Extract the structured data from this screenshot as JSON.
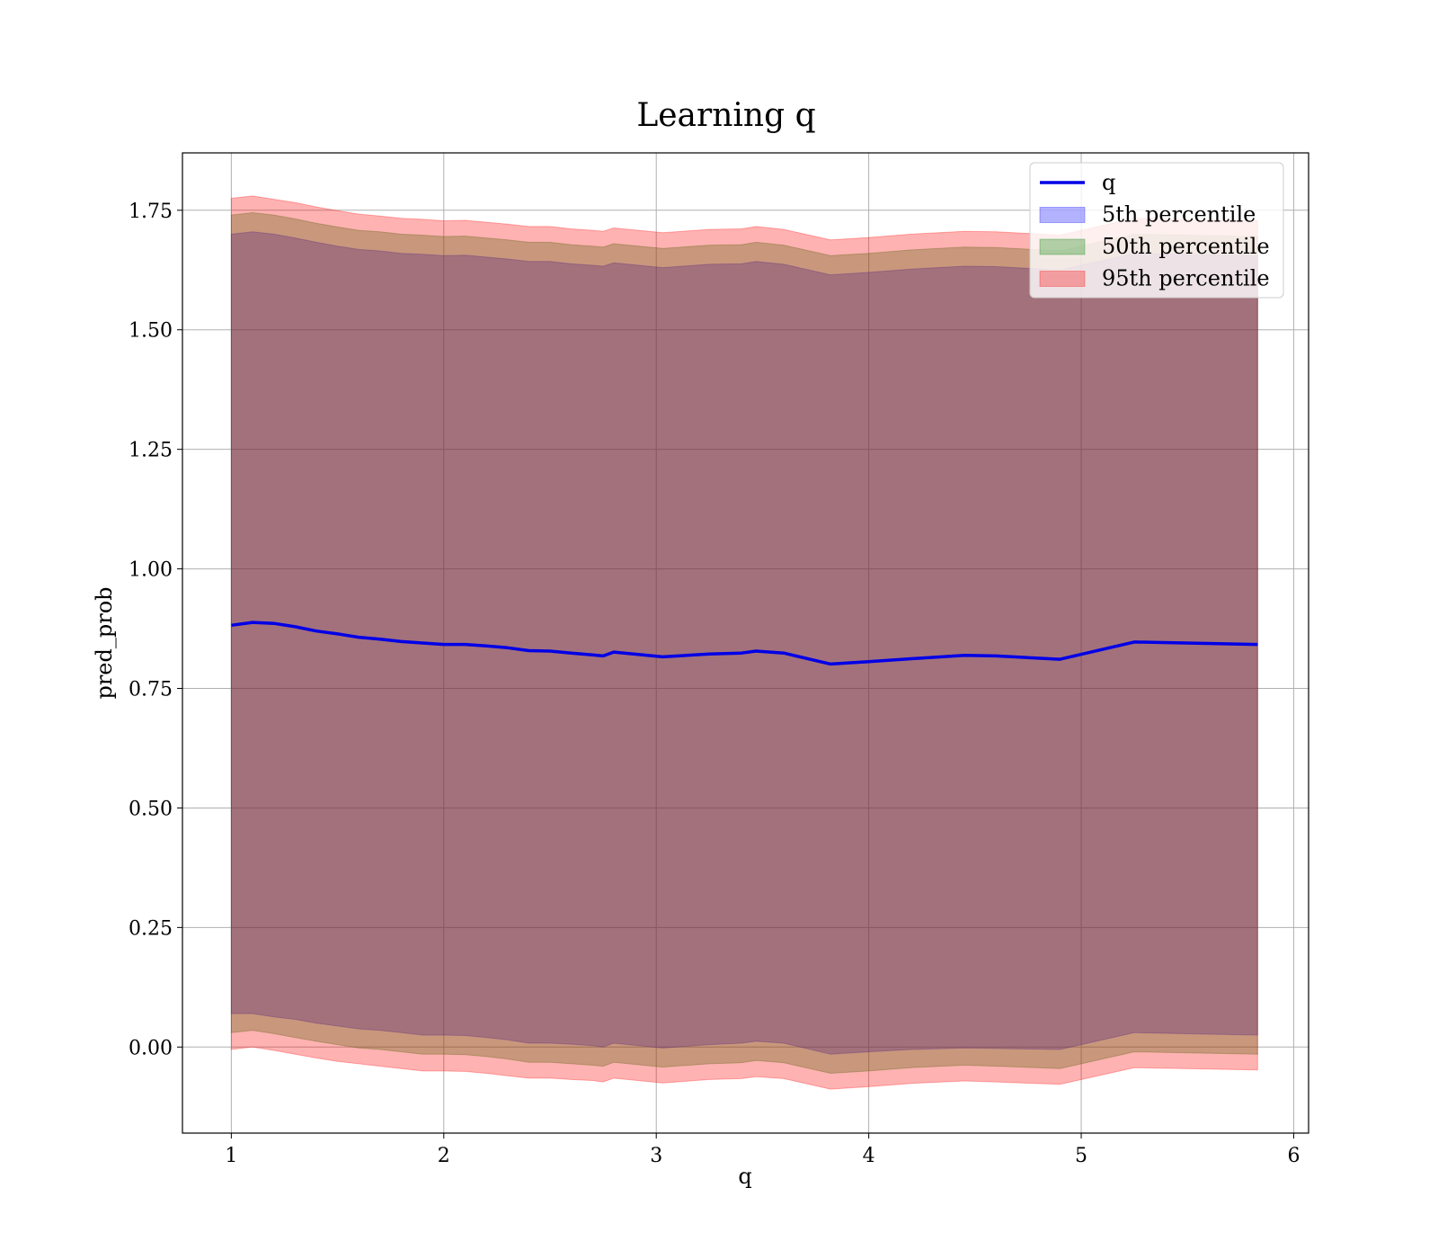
{
  "chart_data": {
    "type": "area",
    "title": "Learning q",
    "xlabel": "q",
    "ylabel": "pred_prob",
    "xlim": [
      0.77,
      6.07
    ],
    "ylim": [
      -0.18,
      1.87
    ],
    "xticks": [
      1,
      2,
      3,
      4,
      5,
      6
    ],
    "yticks": [
      0.0,
      0.25,
      0.5,
      0.75,
      1.0,
      1.25,
      1.5,
      1.75
    ],
    "ytick_labels": [
      "0.00",
      "0.25",
      "0.50",
      "0.75",
      "1.00",
      "1.25",
      "1.50",
      "1.75"
    ],
    "grid": true,
    "legend_position": "top-right",
    "x": [
      1.0,
      1.1,
      1.2,
      1.3,
      1.4,
      1.5,
      1.6,
      1.7,
      1.8,
      1.9,
      2.0,
      2.1,
      2.2,
      2.3,
      2.4,
      2.5,
      2.6,
      2.7,
      2.75,
      2.8,
      3.03,
      3.25,
      3.4,
      3.47,
      3.6,
      3.82,
      4.0,
      4.2,
      4.45,
      4.6,
      4.9,
      5.25,
      5.83
    ],
    "series": [
      {
        "name": "q",
        "kind": "line",
        "color": "#0000e6",
        "values": [
          0.882,
          0.888,
          0.886,
          0.879,
          0.87,
          0.864,
          0.857,
          0.853,
          0.848,
          0.845,
          0.842,
          0.842,
          0.839,
          0.835,
          0.829,
          0.828,
          0.824,
          0.82,
          0.818,
          0.826,
          0.816,
          0.822,
          0.824,
          0.828,
          0.824,
          0.801,
          0.806,
          0.812,
          0.819,
          0.818,
          0.811,
          0.847,
          0.842
        ]
      },
      {
        "name": "5th percentile",
        "kind": "band",
        "color": "#0000ff",
        "lower": [
          0.07,
          0.07,
          0.063,
          0.058,
          0.05,
          0.044,
          0.038,
          0.035,
          0.03,
          0.025,
          0.025,
          0.024,
          0.02,
          0.015,
          0.008,
          0.008,
          0.006,
          0.003,
          0.0,
          0.008,
          -0.002,
          0.005,
          0.008,
          0.012,
          0.008,
          -0.015,
          -0.01,
          -0.005,
          -0.002,
          -0.003,
          -0.005,
          0.03,
          0.025
        ],
        "upper": [
          1.7,
          1.705,
          1.7,
          1.692,
          1.683,
          1.675,
          1.668,
          1.665,
          1.66,
          1.658,
          1.655,
          1.656,
          1.652,
          1.648,
          1.643,
          1.643,
          1.638,
          1.635,
          1.633,
          1.64,
          1.63,
          1.637,
          1.638,
          1.643,
          1.637,
          1.615,
          1.62,
          1.627,
          1.633,
          1.632,
          1.625,
          1.66,
          1.655
        ]
      },
      {
        "name": "50th percentile",
        "kind": "band",
        "color": "#008000",
        "lower": [
          0.03,
          0.035,
          0.028,
          0.02,
          0.012,
          0.005,
          -0.002,
          -0.005,
          -0.01,
          -0.015,
          -0.015,
          -0.016,
          -0.02,
          -0.025,
          -0.032,
          -0.032,
          -0.035,
          -0.038,
          -0.04,
          -0.032,
          -0.042,
          -0.035,
          -0.033,
          -0.028,
          -0.033,
          -0.055,
          -0.05,
          -0.043,
          -0.038,
          -0.04,
          -0.045,
          -0.01,
          -0.015
        ],
        "upper": [
          1.74,
          1.745,
          1.74,
          1.732,
          1.723,
          1.715,
          1.708,
          1.705,
          1.7,
          1.698,
          1.695,
          1.696,
          1.692,
          1.688,
          1.683,
          1.683,
          1.678,
          1.675,
          1.673,
          1.68,
          1.67,
          1.677,
          1.678,
          1.683,
          1.677,
          1.655,
          1.66,
          1.667,
          1.673,
          1.672,
          1.665,
          1.7,
          1.695
        ]
      },
      {
        "name": "95th percentile",
        "kind": "band",
        "color": "#ff0000",
        "lower": [
          -0.005,
          0.0,
          -0.007,
          -0.015,
          -0.023,
          -0.03,
          -0.035,
          -0.04,
          -0.045,
          -0.05,
          -0.05,
          -0.051,
          -0.055,
          -0.06,
          -0.065,
          -0.065,
          -0.068,
          -0.07,
          -0.073,
          -0.065,
          -0.075,
          -0.068,
          -0.066,
          -0.062,
          -0.066,
          -0.088,
          -0.083,
          -0.076,
          -0.071,
          -0.073,
          -0.078,
          -0.043,
          -0.048
        ],
        "upper": [
          1.775,
          1.78,
          1.773,
          1.766,
          1.757,
          1.749,
          1.742,
          1.738,
          1.733,
          1.731,
          1.728,
          1.729,
          1.725,
          1.721,
          1.716,
          1.716,
          1.711,
          1.708,
          1.706,
          1.713,
          1.703,
          1.71,
          1.711,
          1.716,
          1.71,
          1.688,
          1.693,
          1.7,
          1.706,
          1.705,
          1.698,
          1.733,
          1.728
        ]
      }
    ]
  }
}
